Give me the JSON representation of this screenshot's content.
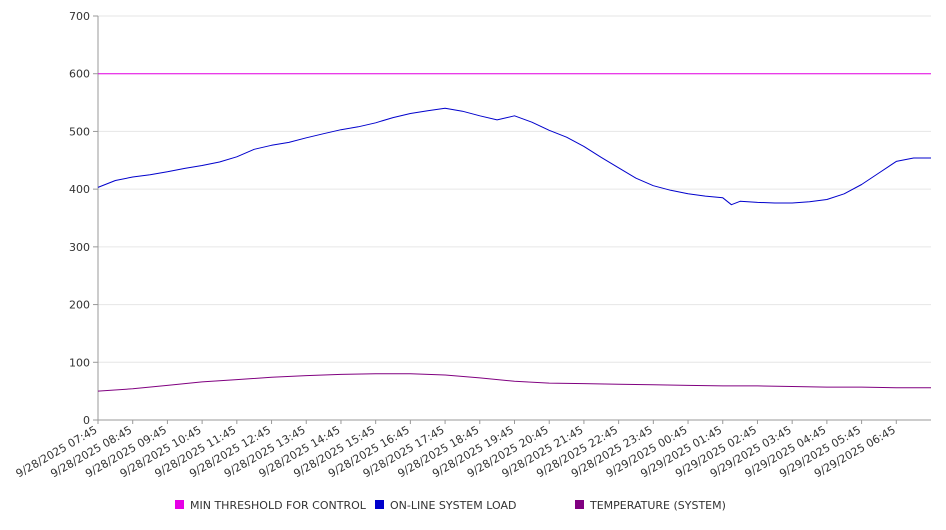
{
  "chart_data": {
    "type": "line",
    "title": "",
    "xlabel": "",
    "ylabel": "",
    "ylim": [
      0,
      700
    ],
    "yticks": [
      0,
      100,
      200,
      300,
      400,
      500,
      600,
      700
    ],
    "grid": true,
    "legend_position": "bottom",
    "x_ticks": [
      "9/28/2025 07:45",
      "9/28/2025 08:45",
      "9/28/2025 09:45",
      "9/28/2025 10:45",
      "9/28/2025 11:45",
      "9/28/2025 12:45",
      "9/28/2025 13:45",
      "9/28/2025 14:45",
      "9/28/2025 15:45",
      "9/28/2025 16:45",
      "9/28/2025 17:45",
      "9/28/2025 18:45",
      "9/28/2025 19:45",
      "9/28/2025 20:45",
      "9/28/2025 21:45",
      "9/28/2025 22:45",
      "9/28/2025 23:45",
      "9/29/2025 00:45",
      "9/29/2025 01:45",
      "9/29/2025 02:45",
      "9/29/2025 03:45",
      "9/29/2025 04:45",
      "9/29/2025 05:45",
      "9/29/2025 06:45"
    ],
    "x_end": "9/29/2025 07:45",
    "series": [
      {
        "name": "MIN THRESHOLD FOR CONTROL",
        "color": "#e600e6",
        "points": [
          [
            "9/28/2025 07:45",
            600
          ],
          [
            "9/29/2025 07:45",
            600
          ]
        ]
      },
      {
        "name": "ON-LINE SYSTEM LOAD",
        "color": "#0000cc",
        "points": [
          [
            "9/28/2025 07:45",
            403
          ],
          [
            "9/28/2025 08:15",
            415
          ],
          [
            "9/28/2025 08:45",
            421
          ],
          [
            "9/28/2025 09:15",
            425
          ],
          [
            "9/28/2025 09:45",
            430
          ],
          [
            "9/28/2025 10:15",
            436
          ],
          [
            "9/28/2025 10:45",
            441
          ],
          [
            "9/28/2025 11:15",
            447
          ],
          [
            "9/28/2025 11:45",
            456
          ],
          [
            "9/28/2025 12:15",
            469
          ],
          [
            "9/28/2025 12:45",
            476
          ],
          [
            "9/28/2025 13:15",
            481
          ],
          [
            "9/28/2025 13:45",
            489
          ],
          [
            "9/28/2025 14:15",
            496
          ],
          [
            "9/28/2025 14:45",
            503
          ],
          [
            "9/28/2025 15:15",
            508
          ],
          [
            "9/28/2025 15:45",
            515
          ],
          [
            "9/28/2025 16:15",
            524
          ],
          [
            "9/28/2025 16:45",
            531
          ],
          [
            "9/28/2025 17:15",
            536
          ],
          [
            "9/28/2025 17:45",
            540
          ],
          [
            "9/28/2025 18:15",
            535
          ],
          [
            "9/28/2025 18:45",
            527
          ],
          [
            "9/28/2025 19:15",
            520
          ],
          [
            "9/28/2025 19:45",
            527
          ],
          [
            "9/28/2025 20:15",
            516
          ],
          [
            "9/28/2025 20:45",
            502
          ],
          [
            "9/28/2025 21:15",
            490
          ],
          [
            "9/28/2025 21:45",
            474
          ],
          [
            "9/28/2025 22:15",
            455
          ],
          [
            "9/28/2025 22:45",
            437
          ],
          [
            "9/28/2025 23:15",
            419
          ],
          [
            "9/28/2025 23:45",
            406
          ],
          [
            "9/29/2025 00:15",
            398
          ],
          [
            "9/29/2025 00:45",
            392
          ],
          [
            "9/29/2025 01:15",
            388
          ],
          [
            "9/29/2025 01:45",
            385
          ],
          [
            "9/29/2025 02:00",
            373
          ],
          [
            "9/29/2025 02:15",
            379
          ],
          [
            "9/29/2025 02:45",
            377
          ],
          [
            "9/29/2025 03:15",
            376
          ],
          [
            "9/29/2025 03:45",
            376
          ],
          [
            "9/29/2025 04:15",
            378
          ],
          [
            "9/29/2025 04:45",
            382
          ],
          [
            "9/29/2025 05:15",
            392
          ],
          [
            "9/29/2025 05:45",
            408
          ],
          [
            "9/29/2025 06:15",
            428
          ],
          [
            "9/29/2025 06:45",
            448
          ],
          [
            "9/29/2025 07:15",
            454
          ],
          [
            "9/29/2025 07:45",
            454
          ]
        ]
      },
      {
        "name": "TEMPERATURE (SYSTEM)",
        "color": "#800080",
        "points": [
          [
            "9/28/2025 07:45",
            50
          ],
          [
            "9/28/2025 08:45",
            54
          ],
          [
            "9/28/2025 09:45",
            60
          ],
          [
            "9/28/2025 10:45",
            66
          ],
          [
            "9/28/2025 11:45",
            70
          ],
          [
            "9/28/2025 12:45",
            74
          ],
          [
            "9/28/2025 13:45",
            77
          ],
          [
            "9/28/2025 14:45",
            79
          ],
          [
            "9/28/2025 15:45",
            80
          ],
          [
            "9/28/2025 16:45",
            80
          ],
          [
            "9/28/2025 17:45",
            78
          ],
          [
            "9/28/2025 18:45",
            73
          ],
          [
            "9/28/2025 19:45",
            67
          ],
          [
            "9/28/2025 20:45",
            64
          ],
          [
            "9/28/2025 21:45",
            63
          ],
          [
            "9/28/2025 22:45",
            62
          ],
          [
            "9/28/2025 23:45",
            61
          ],
          [
            "9/29/2025 00:45",
            60
          ],
          [
            "9/29/2025 01:45",
            59
          ],
          [
            "9/29/2025 02:45",
            59
          ],
          [
            "9/29/2025 03:45",
            58
          ],
          [
            "9/29/2025 04:45",
            57
          ],
          [
            "9/29/2025 05:45",
            57
          ],
          [
            "9/29/2025 06:45",
            56
          ],
          [
            "9/29/2025 07:45",
            56
          ]
        ]
      }
    ]
  }
}
